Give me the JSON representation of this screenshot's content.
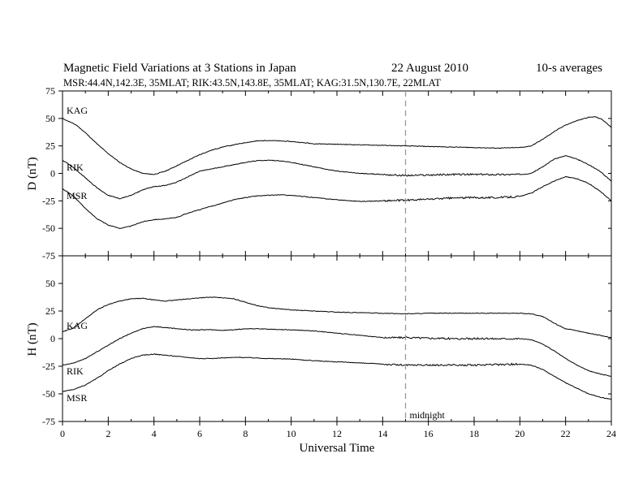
{
  "header": {
    "title": "Magnetic Field Variations at 3 Stations in Japan",
    "date": "22  August  2010",
    "averaging": "10-s averages",
    "stations": "MSR:44.4N,142.3E, 35MLAT;  RIK:43.5N,143.8E, 35MLAT;  KAG:31.5N,130.7E, 22MLAT"
  },
  "chart_data": [
    {
      "type": "line",
      "ylabel": "D (nT)",
      "xlabel": "",
      "xlim": [
        0,
        24
      ],
      "ylim": [
        -75,
        75
      ],
      "yticks": [
        75,
        50,
        25,
        0,
        -25,
        -50,
        -75
      ],
      "series": [
        {
          "name": "KAG",
          "x": [
            0,
            0.3,
            0.6,
            1,
            1.5,
            2,
            2.5,
            3,
            3.5,
            4,
            4.5,
            5,
            5.5,
            6,
            6.5,
            7,
            7.5,
            8,
            8.5,
            9,
            9.5,
            10,
            11,
            12,
            13,
            14,
            15,
            16,
            17,
            18,
            19,
            20,
            20.5,
            21,
            21.5,
            22,
            22.5,
            23,
            23.3,
            23.6,
            24
          ],
          "y": [
            50,
            47,
            44,
            37,
            27,
            18,
            10,
            4,
            0,
            -1,
            2,
            7,
            12,
            17,
            21,
            24,
            26,
            28,
            29.5,
            30,
            29.5,
            29,
            27,
            26.5,
            26,
            25.5,
            25,
            24.5,
            24,
            23.5,
            23,
            23.5,
            25,
            31,
            38,
            44,
            48,
            51,
            51.5,
            49,
            42
          ]
        },
        {
          "name": "RIK",
          "x": [
            0,
            0.5,
            1,
            1.5,
            2,
            2.5,
            3,
            3.5,
            4,
            4.5,
            5,
            5.5,
            6,
            6.5,
            7,
            7.5,
            8,
            8.5,
            9,
            9.5,
            10,
            11,
            12,
            13,
            14,
            15,
            16,
            17,
            18,
            19,
            20,
            20.5,
            21,
            21.5,
            22,
            22.5,
            23,
            23.5,
            24
          ],
          "y": [
            12,
            5,
            -4,
            -13,
            -20,
            -23,
            -20,
            -15,
            -12,
            -11,
            -8,
            -3,
            2,
            4,
            6,
            8,
            10,
            11.5,
            12,
            11.5,
            10,
            6,
            2,
            0,
            -1,
            -2,
            -1.5,
            -1,
            -1,
            -1,
            -1,
            0,
            6,
            13,
            16,
            13,
            8,
            2,
            -7
          ]
        },
        {
          "name": "MSR",
          "x": [
            0,
            0.5,
            1,
            1.5,
            2,
            2.5,
            3,
            3.5,
            4,
            4.5,
            5,
            5.5,
            6,
            6.5,
            7,
            7.5,
            8,
            8.5,
            9,
            9.5,
            10,
            11,
            12,
            13,
            14,
            15,
            16,
            17,
            18,
            19,
            20,
            20.5,
            21,
            21.5,
            22,
            22.5,
            23,
            23.5,
            24
          ],
          "y": [
            -14,
            -21,
            -32,
            -41,
            -47,
            -50,
            -48,
            -44,
            -42,
            -41.5,
            -40,
            -36,
            -33,
            -30,
            -27,
            -24,
            -22,
            -20.5,
            -20,
            -19.5,
            -20,
            -22,
            -24,
            -25.5,
            -25,
            -24.5,
            -23.5,
            -22.5,
            -22,
            -22,
            -21,
            -18,
            -12,
            -7,
            -3,
            -5,
            -9,
            -16,
            -25
          ]
        }
      ]
    },
    {
      "type": "line",
      "ylabel": "H (nT)",
      "xlabel": "Universal Time",
      "xlim": [
        0,
        24
      ],
      "ylim": [
        -75,
        75
      ],
      "xticks": [
        0,
        2,
        4,
        6,
        8,
        10,
        12,
        14,
        16,
        18,
        20,
        22,
        24
      ],
      "yticks": [
        50,
        25,
        0,
        -25,
        -50,
        -75
      ],
      "series": [
        {
          "name": "KAG",
          "x": [
            0,
            0.5,
            1,
            1.5,
            2,
            2.5,
            3,
            3.5,
            4,
            4.5,
            5,
            5.5,
            6,
            6.5,
            7,
            7.5,
            8,
            8.5,
            9,
            10,
            11,
            12,
            13,
            14,
            15,
            16,
            17,
            18,
            19,
            20,
            20.5,
            21,
            21.5,
            22,
            22.5,
            23,
            23.5,
            24
          ],
          "y": [
            6,
            10,
            18,
            26,
            31,
            34,
            36,
            36.5,
            35,
            34,
            35,
            36,
            37,
            37.5,
            37,
            36,
            33,
            30,
            28,
            26,
            25,
            24,
            23.5,
            23,
            22.5,
            23,
            23,
            23,
            23,
            23,
            22.5,
            20,
            14,
            9,
            7,
            5,
            3,
            1
          ]
        },
        {
          "name": "RIK",
          "x": [
            0,
            0.5,
            1,
            1.5,
            2,
            2.5,
            3,
            3.5,
            4,
            4.5,
            5,
            5.5,
            6,
            6.5,
            7,
            7.5,
            8,
            8.5,
            9,
            10,
            11,
            12,
            13,
            14,
            15,
            16,
            17,
            18,
            19,
            20,
            20.5,
            21,
            21.5,
            22,
            22.5,
            23,
            23.5,
            24
          ],
          "y": [
            -24,
            -22,
            -18,
            -12,
            -6,
            0,
            5,
            9,
            11,
            10,
            9,
            8,
            8,
            8,
            7.5,
            8,
            9,
            9,
            8.5,
            8,
            7,
            5,
            3,
            1,
            1,
            0.5,
            0,
            0,
            0,
            0,
            -1,
            -5,
            -11,
            -18,
            -24,
            -29,
            -32,
            -34
          ]
        },
        {
          "name": "MSR",
          "x": [
            0,
            0.5,
            1,
            1.5,
            2,
            2.5,
            3,
            3.5,
            4,
            4.5,
            5,
            5.5,
            6,
            6.5,
            7,
            7.5,
            8,
            8.5,
            9,
            10,
            11,
            12,
            13,
            14,
            15,
            16,
            17,
            18,
            19,
            20,
            20.5,
            21,
            21.5,
            22,
            22.5,
            23,
            23.5,
            24
          ],
          "y": [
            -48,
            -46,
            -42,
            -36,
            -29,
            -23,
            -18,
            -15,
            -14,
            -15,
            -16,
            -17,
            -18,
            -18,
            -17.5,
            -17,
            -17,
            -17.5,
            -18,
            -18.5,
            -20,
            -21,
            -22,
            -23,
            -24,
            -24,
            -24,
            -24,
            -23.5,
            -23,
            -24,
            -28,
            -34,
            -40,
            -45,
            -50,
            -53,
            -55
          ]
        }
      ]
    }
  ],
  "midnight_marker": {
    "x": 15,
    "label": "midnight"
  },
  "colors": {
    "line": "#000000",
    "marker": "#999999"
  }
}
